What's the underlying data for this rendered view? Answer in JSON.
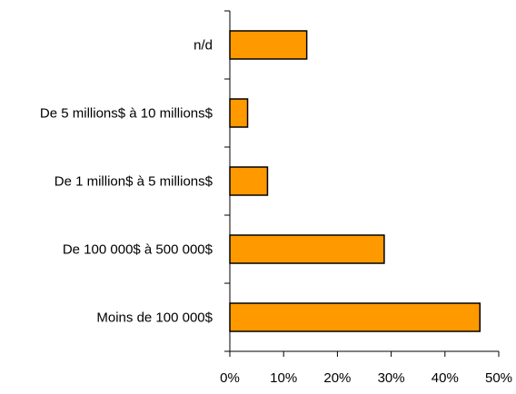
{
  "chart_data": {
    "type": "bar",
    "orientation": "horizontal",
    "categories": [
      "n/d",
      "De 5 millions$ à 10 millions$",
      "De 1 million$ à 5 millions$",
      "De 100 000$ à 500 000$",
      "Moins de 100 000$"
    ],
    "values": [
      0.143,
      0.033,
      0.07,
      0.287,
      0.465
    ],
    "xlim": [
      0,
      0.5
    ],
    "ticks": [
      0,
      0.1,
      0.2,
      0.3,
      0.4,
      0.5
    ],
    "tick_labels": [
      "0%",
      "10%",
      "20%",
      "30%",
      "40%",
      "50%"
    ],
    "title": "",
    "xlabel": "",
    "ylabel": "",
    "grid": false,
    "bar_color": "#FF9900",
    "bar_edge_color": "#000000"
  }
}
